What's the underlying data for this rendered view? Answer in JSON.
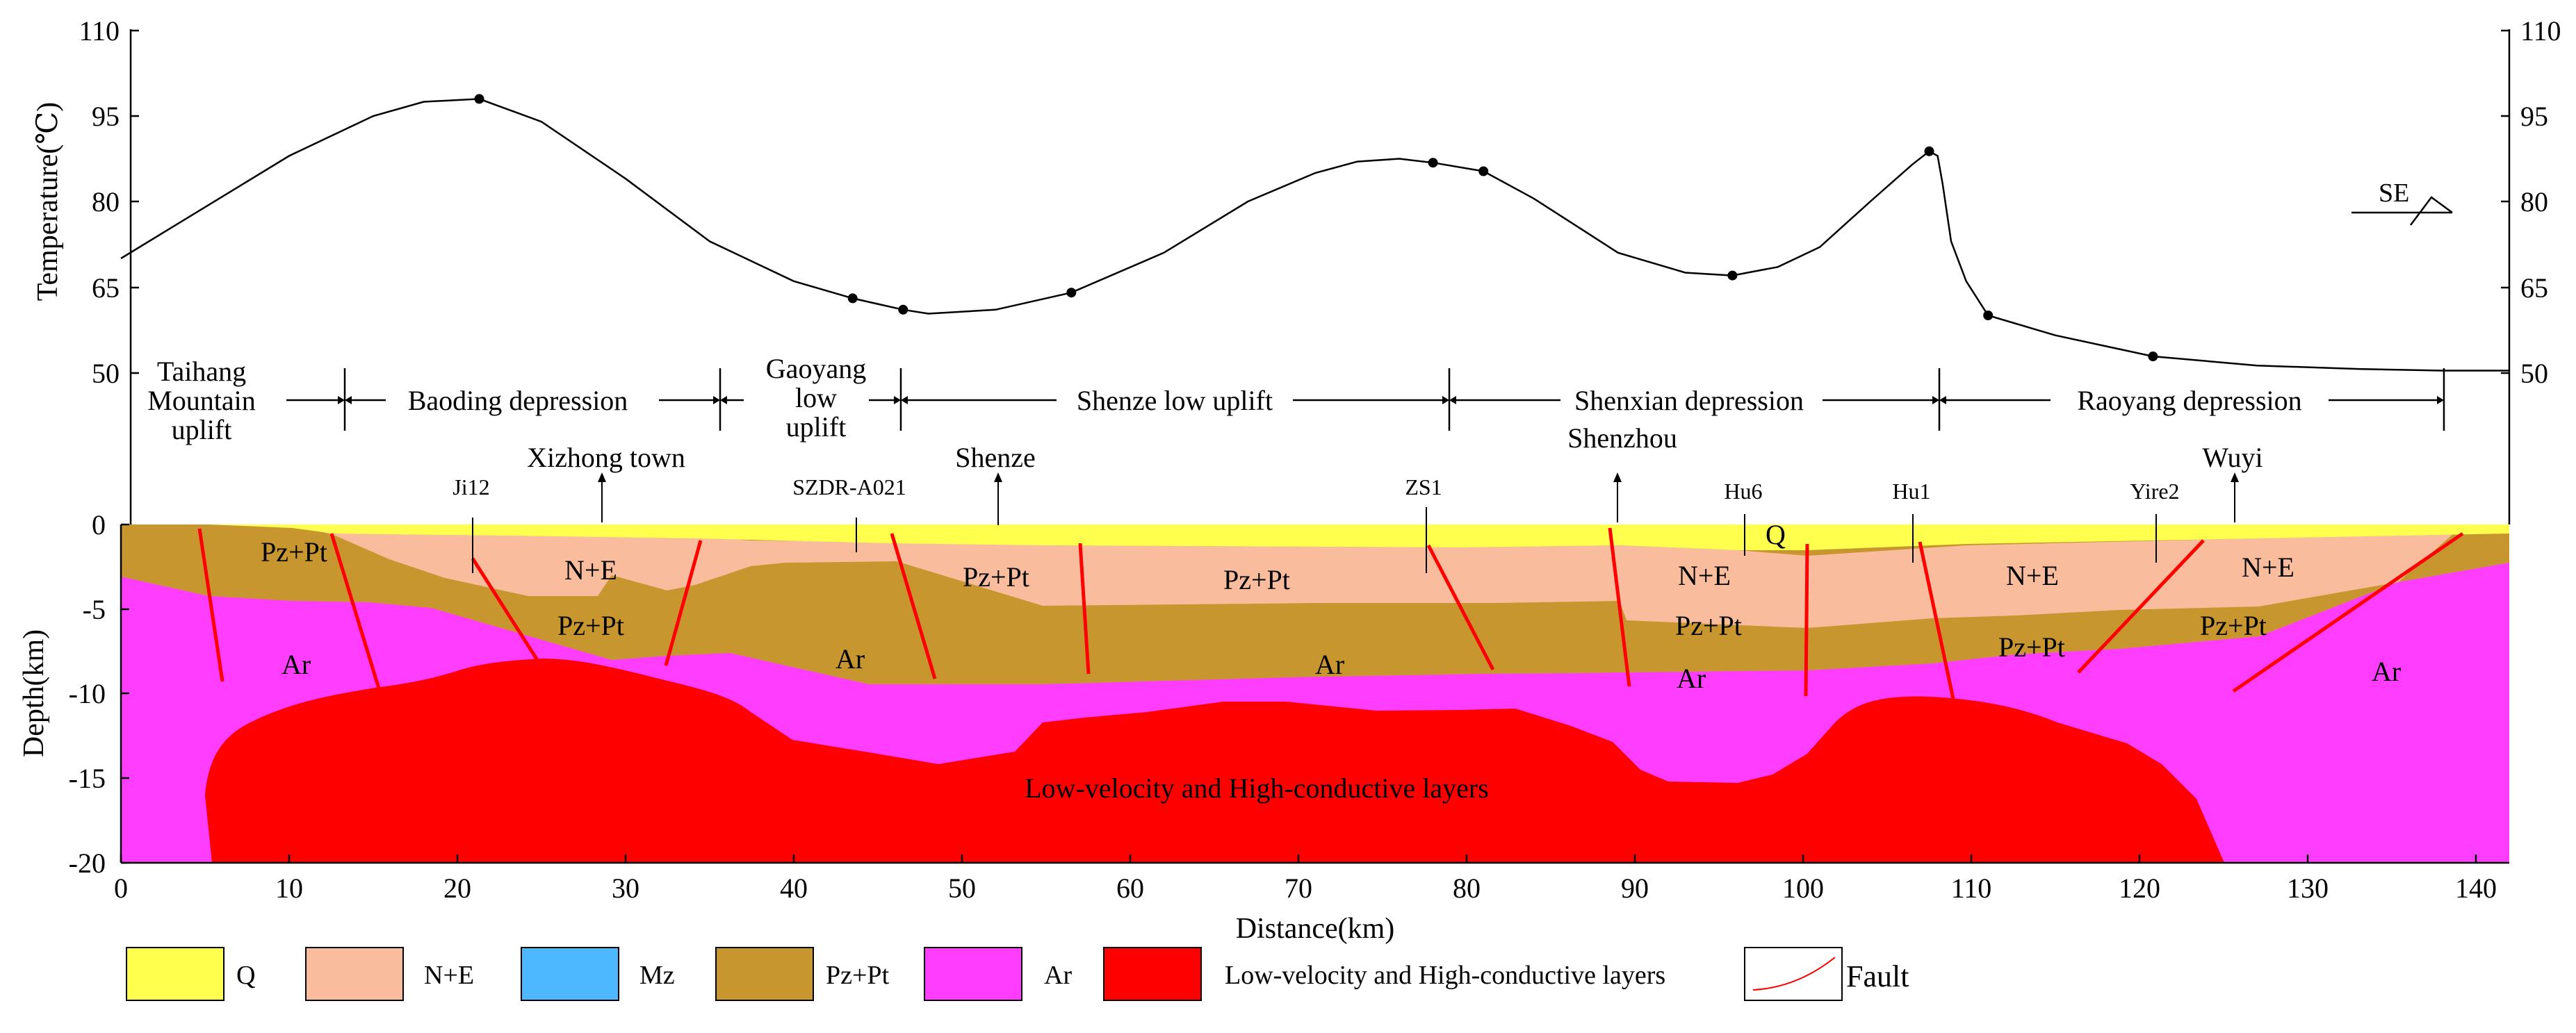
{
  "temperature_axis": {
    "title": "Temperature(℃)",
    "ticks": [
      "110",
      "95",
      "80",
      "65",
      "50"
    ],
    "right_ticks": [
      "110",
      "95",
      "80",
      "65",
      "50"
    ]
  },
  "depth_axis": {
    "title": "Depth(km)",
    "ticks": [
      "0",
      "-5",
      "-10",
      "-15",
      "-20"
    ]
  },
  "distance_axis": {
    "title": "Distance(km)",
    "ticks": [
      "0",
      "10",
      "20",
      "30",
      "40",
      "50",
      "60",
      "70",
      "80",
      "90",
      "100",
      "110",
      "120",
      "130",
      "140"
    ]
  },
  "orientation": "SE",
  "regions": {
    "taihang": [
      "Taihang",
      "Mountain",
      "uplift"
    ],
    "baoding": "Baoding depression",
    "gaoyang": [
      "Gaoyang",
      "low",
      "uplift"
    ],
    "shenze_uplift": "Shenze low uplift",
    "shenxian": "Shenxian depression",
    "raoyang": "Raoyang depression"
  },
  "wells": {
    "ji12": "Ji12",
    "szdr": "SZDR-A021",
    "zs1": "ZS1",
    "hu6": "Hu6",
    "hu1": "Hu1",
    "yire2": "Yire2"
  },
  "towns": {
    "xizhong": "Xizhong town",
    "shenze": "Shenze",
    "shenzhou": "Shenzhou",
    "wuyi": "Wuyi"
  },
  "units": {
    "pzpt": "Pz+Pt",
    "ne": "N+E",
    "ar": "Ar",
    "q": "Q",
    "lv": "Low-velocity and High-conductive layers"
  },
  "legend": [
    {
      "label": "Q",
      "color": "#ffff4d"
    },
    {
      "label": "N+E",
      "color": "#f9bc9c"
    },
    {
      "label": "Mz",
      "color": "#4db8ff"
    },
    {
      "label": "Pz+Pt",
      "color": "#c8962f"
    },
    {
      "label": "Ar",
      "color": "#ff3dff"
    },
    {
      "label": "Low-velocity and High-conductive layers",
      "color": "#ff0000"
    },
    {
      "label": "Fault",
      "color": "#ff0000"
    }
  ],
  "temperature_profile": {
    "name": "Surface temperature profile",
    "x_unit": "km",
    "y_unit": "°C",
    "points": [
      [
        0,
        70
      ],
      [
        5,
        79
      ],
      [
        10,
        88
      ],
      [
        15,
        95
      ],
      [
        18,
        97.5
      ],
      [
        21.3,
        98
      ],
      [
        25,
        94
      ],
      [
        30,
        84
      ],
      [
        35,
        73
      ],
      [
        40,
        66
      ],
      [
        43.5,
        63
      ],
      [
        46.5,
        61
      ],
      [
        48,
        60.3
      ],
      [
        52,
        61
      ],
      [
        56.5,
        64
      ],
      [
        62,
        71
      ],
      [
        67,
        80
      ],
      [
        71,
        85
      ],
      [
        73.5,
        87
      ],
      [
        76,
        87.5
      ],
      [
        78,
        86.8
      ],
      [
        81,
        85.3
      ],
      [
        84,
        80.5
      ],
      [
        89,
        71
      ],
      [
        93,
        67.5
      ],
      [
        95.8,
        67
      ],
      [
        98.5,
        68.5
      ],
      [
        101,
        72
      ],
      [
        104,
        80
      ],
      [
        106.5,
        86.5
      ],
      [
        107.5,
        88.8
      ],
      [
        108,
        88
      ],
      [
        108.3,
        83
      ],
      [
        108.8,
        73
      ],
      [
        109.7,
        66
      ],
      [
        111,
        60
      ],
      [
        115,
        56.5
      ],
      [
        120.8,
        52.8
      ],
      [
        127,
        51.2
      ],
      [
        133,
        50.6
      ],
      [
        138,
        50.3
      ],
      [
        142,
        50.3
      ]
    ],
    "sampled_points": [
      [
        21.3,
        98
      ],
      [
        43.5,
        63
      ],
      [
        46.5,
        61
      ],
      [
        56.5,
        64
      ],
      [
        78,
        86.8
      ],
      [
        81,
        85.3
      ],
      [
        95.8,
        67
      ],
      [
        107.5,
        88.8
      ],
      [
        111,
        60
      ],
      [
        120.8,
        52.8
      ]
    ]
  }
}
